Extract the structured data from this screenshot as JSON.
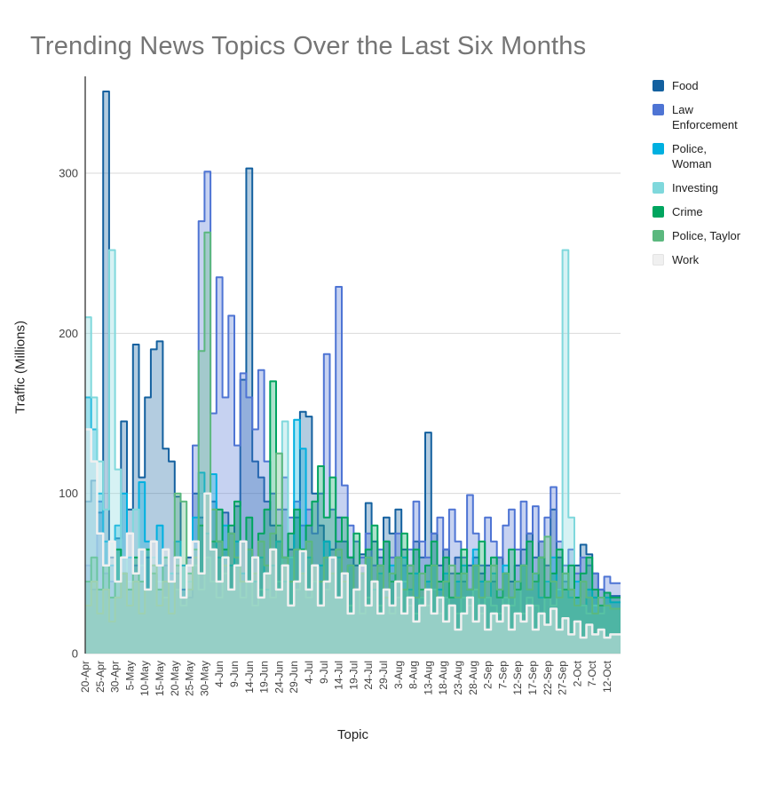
{
  "title": "Trending News Topics Over the Last Six Months",
  "axes": {
    "y_title": "Traffic (Millions)",
    "x_title": "Topic",
    "y_tick_labels": [
      "0",
      "100",
      "200",
      "300"
    ],
    "x_tick_labels": [
      "20-Apr",
      "25-Apr",
      "30-Apr",
      "5-May",
      "10-May",
      "15-May",
      "20-May",
      "25-May",
      "30-May",
      "4-Jun",
      "9-Jun",
      "14-Jun",
      "19-Jun",
      "24-Jun",
      "29-Jun",
      "4-Jul",
      "9-Jul",
      "14-Jul",
      "19-Jul",
      "24-Jul",
      "29-Jul",
      "3-Aug",
      "8-Aug",
      "13-Aug",
      "18-Aug",
      "23-Aug",
      "28-Aug",
      "2-Sep",
      "7-Sep",
      "12-Sep",
      "17-Sep",
      "22-Sep",
      "27-Sep",
      "2-Oct",
      "7-Oct",
      "12-Oct"
    ]
  },
  "legend": {
    "items": [
      {
        "label": "Food",
        "color": "#13609f"
      },
      {
        "label": "Law\nEnforcement",
        "color": "#4e74d4"
      },
      {
        "label": "Police,\nWoman",
        "color": "#00b0e0"
      },
      {
        "label": "Investing",
        "color": "#7fd8dc"
      },
      {
        "label": "Crime",
        "color": "#00a55f"
      },
      {
        "label": "Police, Taylor",
        "color": "#5bb87e"
      },
      {
        "label": "Work",
        "color": "#f0f0f0"
      }
    ]
  },
  "colors": {
    "title_text": "#757575",
    "axis_text": "#424242",
    "axis_line": "#333333",
    "gridline": "#dadada",
    "background": "#ffffff"
  },
  "chart_data": {
    "type": "area",
    "subtype": "stepped-area-overlap",
    "title": "Trending News Topics Over the Last Six Months",
    "xlabel": "Topic",
    "ylabel": "Traffic (Millions)",
    "ylim": [
      0,
      358
    ],
    "y_ticks": [
      0,
      100,
      200,
      300
    ],
    "grid": true,
    "legend_position": "right",
    "x_start": "20-Apr",
    "x_end": "13-Oct",
    "x_step_days": 2,
    "n_points": 89,
    "x_tick_labels": [
      "20-Apr",
      "25-Apr",
      "30-Apr",
      "5-May",
      "10-May",
      "15-May",
      "20-May",
      "25-May",
      "30-May",
      "4-Jun",
      "9-Jun",
      "14-Jun",
      "19-Jun",
      "24-Jun",
      "29-Jun",
      "4-Jul",
      "9-Jul",
      "14-Jul",
      "19-Jul",
      "24-Jul",
      "29-Jul",
      "3-Aug",
      "8-Aug",
      "13-Aug",
      "18-Aug",
      "23-Aug",
      "28-Aug",
      "2-Sep",
      "7-Sep",
      "12-Sep",
      "17-Sep",
      "22-Sep",
      "27-Sep",
      "2-Oct",
      "7-Oct",
      "12-Oct"
    ],
    "series": [
      {
        "name": "Food",
        "color": "#13609f",
        "values": [
          95,
          108,
          88,
          351,
          60,
          72,
          145,
          90,
          193,
          110,
          160,
          190,
          195,
          128,
          120,
          98,
          35,
          60,
          100,
          85,
          100,
          95,
          70,
          88,
          75,
          92,
          171,
          303,
          120,
          110,
          95,
          80,
          70,
          90,
          65,
          85,
          151,
          148,
          100,
          80,
          70,
          65,
          85,
          70,
          60,
          55,
          62,
          94,
          70,
          60,
          85,
          75,
          90,
          65,
          55,
          70,
          60,
          138,
          75,
          55,
          65,
          50,
          60,
          45,
          55,
          60,
          50,
          55,
          45,
          60,
          50,
          45,
          55,
          65,
          75,
          60,
          70,
          55,
          90,
          60,
          45,
          40,
          55,
          68,
          62,
          50,
          40,
          38,
          36
        ]
      },
      {
        "name": "Law Enforcement",
        "color": "#4e74d4",
        "values": [
          55,
          40,
          95,
          50,
          45,
          35,
          50,
          40,
          55,
          45,
          60,
          50,
          40,
          55,
          45,
          50,
          40,
          35,
          130,
          270,
          301,
          150,
          235,
          160,
          211,
          130,
          175,
          160,
          140,
          177,
          120,
          100,
          90,
          110,
          85,
          95,
          80,
          90,
          75,
          100,
          187,
          90,
          229,
          105,
          80,
          70,
          60,
          75,
          55,
          65,
          70,
          60,
          75,
          55,
          65,
          95,
          70,
          60,
          75,
          85,
          65,
          90,
          70,
          60,
          99,
          75,
          55,
          85,
          70,
          60,
          80,
          90,
          65,
          95,
          75,
          92,
          70,
          85,
          104,
          70,
          55,
          65,
          50,
          60,
          55,
          50,
          40,
          48,
          44
        ]
      },
      {
        "name": "Police, Woman",
        "color": "#00b0e0",
        "values": [
          160,
          140,
          100,
          70,
          55,
          80,
          100,
          60,
          45,
          107,
          70,
          55,
          80,
          60,
          45,
          70,
          55,
          40,
          85,
          113,
          75,
          112,
          60,
          80,
          55,
          70,
          50,
          65,
          45,
          60,
          40,
          55,
          70,
          45,
          60,
          146,
          128,
          60,
          45,
          55,
          70,
          50,
          60,
          45,
          55,
          40,
          50,
          60,
          40,
          50,
          35,
          55,
          45,
          60,
          40,
          50,
          35,
          45,
          55,
          40,
          50,
          35,
          45,
          55,
          40,
          65,
          45,
          35,
          50,
          40,
          55,
          35,
          45,
          55,
          40,
          50,
          35,
          45,
          60,
          40,
          50,
          35,
          45,
          30,
          40,
          35,
          30,
          35,
          32
        ]
      },
      {
        "name": "Investing",
        "color": "#7fd8dc",
        "values": [
          210,
          160,
          120,
          90,
          252,
          115,
          60,
          45,
          90,
          55,
          40,
          60,
          45,
          35,
          50,
          40,
          30,
          45,
          55,
          40,
          60,
          45,
          35,
          50,
          40,
          55,
          35,
          45,
          30,
          40,
          50,
          35,
          45,
          145,
          60,
          40,
          50,
          35,
          45,
          30,
          40,
          50,
          35,
          45,
          30,
          40,
          25,
          35,
          45,
          30,
          40,
          25,
          35,
          45,
          30,
          25,
          35,
          30,
          40,
          25,
          35,
          30,
          25,
          35,
          30,
          40,
          25,
          35,
          30,
          25,
          35,
          30,
          40,
          25,
          35,
          30,
          25,
          35,
          30,
          40,
          252,
          85,
          35,
          30,
          25,
          30,
          25,
          30,
          28
        ]
      },
      {
        "name": "Crime",
        "color": "#00a55f",
        "values": [
          45,
          60,
          40,
          55,
          35,
          65,
          50,
          40,
          60,
          45,
          65,
          50,
          40,
          60,
          45,
          55,
          35,
          50,
          65,
          80,
          100,
          70,
          90,
          65,
          80,
          95,
          70,
          85,
          60,
          75,
          90,
          170,
          80,
          60,
          75,
          90,
          65,
          80,
          95,
          117,
          85,
          110,
          70,
          85,
          60,
          75,
          50,
          65,
          80,
          55,
          70,
          45,
          60,
          75,
          50,
          65,
          40,
          55,
          70,
          45,
          60,
          35,
          50,
          65,
          40,
          55,
          70,
          45,
          60,
          35,
          50,
          65,
          40,
          55,
          70,
          45,
          60,
          35,
          50,
          65,
          40,
          55,
          35,
          50,
          60,
          40,
          30,
          38,
          35
        ]
      },
      {
        "name": "Police, Taylor",
        "color": "#5bb87e",
        "values": [
          30,
          45,
          25,
          40,
          20,
          35,
          50,
          30,
          45,
          25,
          40,
          55,
          30,
          45,
          25,
          100,
          95,
          40,
          60,
          189,
          263,
          90,
          70,
          55,
          75,
          60,
          45,
          65,
          50,
          70,
          55,
          75,
          125,
          60,
          45,
          65,
          50,
          70,
          55,
          45,
          60,
          50,
          65,
          45,
          55,
          40,
          50,
          60,
          45,
          55,
          35,
          50,
          60,
          40,
          55,
          35,
          50,
          40,
          55,
          35,
          45,
          55,
          35,
          50,
          40,
          55,
          35,
          45,
          55,
          40,
          50,
          35,
          45,
          55,
          40,
          50,
          60,
          73,
          45,
          35,
          50,
          40,
          30,
          45,
          35,
          25,
          35,
          30,
          28
        ]
      },
      {
        "name": "Work",
        "color": "#f0f0f0",
        "values": [
          140,
          120,
          75,
          55,
          70,
          45,
          60,
          75,
          50,
          65,
          40,
          70,
          55,
          65,
          45,
          60,
          35,
          55,
          70,
          50,
          100,
          65,
          45,
          60,
          40,
          55,
          70,
          45,
          60,
          35,
          50,
          65,
          40,
          55,
          30,
          45,
          64,
          40,
          55,
          30,
          45,
          60,
          35,
          50,
          25,
          40,
          55,
          30,
          45,
          25,
          40,
          30,
          45,
          25,
          35,
          20,
          30,
          40,
          25,
          35,
          20,
          30,
          15,
          25,
          35,
          20,
          30,
          15,
          25,
          20,
          30,
          15,
          25,
          20,
          30,
          15,
          25,
          18,
          28,
          15,
          22,
          12,
          20,
          10,
          18,
          12,
          15,
          10,
          12
        ]
      }
    ]
  }
}
